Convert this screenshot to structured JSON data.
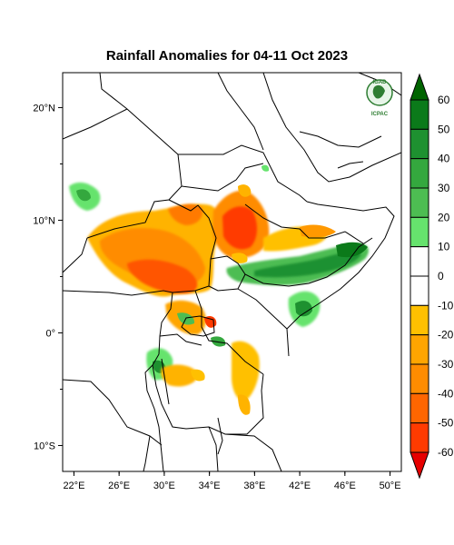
{
  "title": "Rainfall Anomalies for 04-11 Oct 2023",
  "logo": {
    "top_text": "IGAD",
    "bottom_text": "ICPAC"
  },
  "lon_ticks": [
    {
      "label": "22°E",
      "lon": 22
    },
    {
      "label": "26°E",
      "lon": 26
    },
    {
      "label": "30°E",
      "lon": 30
    },
    {
      "label": "34°E",
      "lon": 34
    },
    {
      "label": "38°E",
      "lon": 38
    },
    {
      "label": "42°E",
      "lon": 42
    },
    {
      "label": "46°E",
      "lon": 46
    },
    {
      "label": "50°E",
      "lon": 50
    }
  ],
  "lat_ticks": [
    {
      "label": "20°N",
      "lat": 20
    },
    {
      "label": "10°N",
      "lat": 10
    },
    {
      "label": "0°",
      "lat": 0
    },
    {
      "label": "10°S",
      "lat": -10
    }
  ],
  "colorbar": {
    "levels": [
      60,
      50,
      40,
      30,
      20,
      10,
      0,
      -10,
      -20,
      -30,
      -40,
      -50,
      -60
    ],
    "colors": {
      "arrow_top": "#006400",
      "c50_60": "#0b7a1a",
      "c40_50": "#1e9130",
      "c30_40": "#34a83e",
      "c20_30": "#4dbd52",
      "c10_20": "#66e36d",
      "c0_10": "#ffffff",
      "cm10_0": "#ffffff",
      "cm20_m10": "#ffc000",
      "cm30_m20": "#ffa500",
      "cm40_m30": "#ff8c00",
      "cm50_m40": "#ff6600",
      "cm60_m50": "#ff3b00",
      "arrow_bottom": "#e60000"
    }
  }
}
